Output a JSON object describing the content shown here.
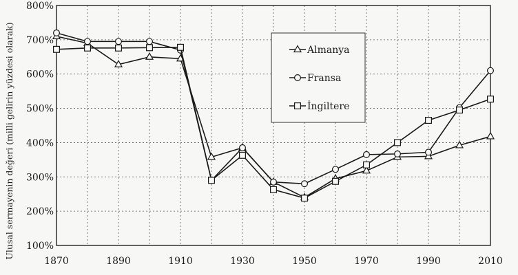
{
  "chart_data": {
    "type": "line",
    "title": "",
    "xlabel": "",
    "ylabel": "Ulusal sermayenin değeri (milli gelirin yüzdesi olarak)",
    "x": [
      1870,
      1880,
      1890,
      1900,
      1910,
      1920,
      1930,
      1940,
      1950,
      1960,
      1970,
      1980,
      1990,
      2000,
      2010
    ],
    "xticks": [
      1870,
      1890,
      1910,
      1930,
      1950,
      1970,
      1990,
      2010
    ],
    "xlim": [
      1870,
      2010
    ],
    "yticks": [
      100,
      200,
      300,
      400,
      500,
      600,
      700,
      800
    ],
    "ytick_labels": [
      "100%",
      "200%",
      "300%",
      "400%",
      "500%",
      "600%",
      "700%",
      "800%"
    ],
    "ylim": [
      100,
      800
    ],
    "grid": true,
    "legend_position": "upper-right",
    "series": [
      {
        "name": "Almanya",
        "marker": "triangle",
        "values": [
          710,
          690,
          628,
          650,
          645,
          358,
          385,
          285,
          240,
          295,
          318,
          358,
          360,
          392,
          418
        ]
      },
      {
        "name": "Fransa",
        "marker": "circle",
        "values": [
          720,
          695,
          695,
          695,
          670,
          290,
          385,
          285,
          280,
          322,
          365,
          367,
          372,
          502,
          610
        ]
      },
      {
        "name": "İngiltere",
        "marker": "square",
        "values": [
          672,
          676,
          676,
          677,
          678,
          290,
          363,
          263,
          238,
          287,
          335,
          400,
          465,
          495,
          527
        ]
      }
    ]
  }
}
